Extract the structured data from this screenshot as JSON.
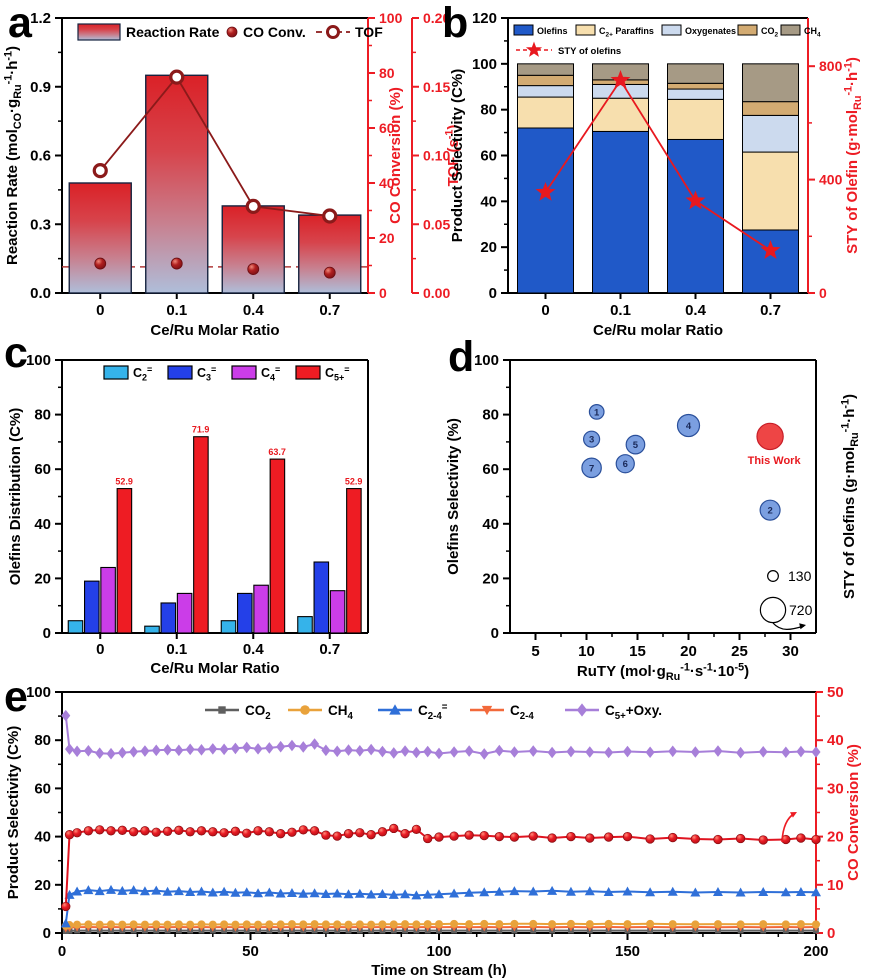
{
  "chart_data": [
    {
      "panel_label": "a",
      "type": "bar",
      "categories": [
        "0",
        "0.1",
        "0.4",
        "0.7"
      ],
      "xlabel": "Ce/Ru Molar Ratio",
      "axes": {
        "left": {
          "label": "Reaction Rate (mol~CO~·g~Ru~^-1^·h^-1^)",
          "range": [
            0,
            1.2
          ],
          "ticks": [
            0,
            0.3,
            0.6,
            0.9,
            1.2
          ],
          "tick_labels": [
            "0.0",
            "0.3",
            "0.6",
            "0.9",
            "1.2"
          ],
          "minor_step": 0.15
        },
        "right1": {
          "label": "CO Conversion (%)",
          "range": [
            0,
            100
          ],
          "ticks": [
            0,
            20,
            40,
            60,
            80,
            100
          ],
          "tick_labels": [
            "0",
            "20",
            "40",
            "60",
            "80",
            "100"
          ],
          "minor_step": 10
        },
        "right2": {
          "label": "TOF (s^-1^)",
          "range": [
            0,
            0.2
          ],
          "ticks": [
            0,
            0.05,
            0.1,
            0.15,
            0.2
          ],
          "tick_labels": [
            "0.00",
            "0.05",
            "0.10",
            "0.15",
            "0.20"
          ],
          "minor_step": 0.025
        }
      },
      "series": [
        {
          "name": "Reaction Rate",
          "type": "gradient-bar",
          "axis": "left",
          "values": [
            0.48,
            0.95,
            0.38,
            0.34
          ],
          "color_top": "#da2127",
          "color_bottom": "#afbeda",
          "border": "#16233f"
        },
        {
          "name": "CO Conv.",
          "type": "sphere-scatter",
          "axis": "right1",
          "values": [
            10.7,
            10.7,
            8.7,
            7.4
          ],
          "color": "#9e1c1c"
        },
        {
          "name": "TOF",
          "type": "open-circle-line",
          "axis": "right2",
          "values": [
            0.089,
            0.157,
            0.063,
            0.056
          ],
          "color": "#8b1a1a"
        }
      ],
      "reference_line": {
        "axis": "right1",
        "value": 9.5,
        "style": "dashed",
        "color": "#b03a3a"
      },
      "axis_red": "#ed1c24"
    },
    {
      "panel_label": "b",
      "type": "stacked-bar",
      "categories": [
        "0",
        "0.1",
        "0.4",
        "0.7"
      ],
      "xlabel": "Ce/Ru molar Ratio",
      "axes": {
        "left": {
          "label": "Product Selectivity (C%)",
          "range": [
            0,
            120
          ],
          "ticks": [
            0,
            20,
            40,
            60,
            80,
            100,
            120
          ],
          "tick_labels": [
            "0",
            "20",
            "40",
            "60",
            "80",
            "100",
            "120"
          ],
          "minor_step": 10
        },
        "right": {
          "label": "STY of Olefin (g·mol~Ru~^-1^·h^-1^)",
          "range": [
            0,
            970
          ],
          "ticks": [
            0,
            400,
            800
          ],
          "tick_labels": [
            "0",
            "400",
            "800"
          ],
          "minor_ticks": [
            200,
            600
          ]
        }
      },
      "stack_series": [
        {
          "name": "Olefins",
          "color": "#2059c8",
          "values": [
            72,
            70.5,
            67,
            27.5
          ]
        },
        {
          "name": "C~2+~ Paraffins",
          "color": "#f7dfae",
          "values": [
            13.5,
            14.5,
            17.5,
            34
          ]
        },
        {
          "name": "Oxygenates",
          "color": "#ccdaee",
          "values": [
            5,
            6,
            4.5,
            16
          ]
        },
        {
          "name": "CO~2~",
          "color": "#d3ab72",
          "values": [
            4.5,
            2,
            2.5,
            6
          ]
        },
        {
          "name": "CH~4~",
          "color": "#a69a85",
          "values": [
            5,
            7,
            8.5,
            16.5
          ]
        }
      ],
      "sty_series": {
        "name": "STY of olefins",
        "axis": "right",
        "marker": "star",
        "color": "#e8191f",
        "values": [
          355,
          750,
          325,
          150
        ]
      },
      "axis_red": "#ed1c24"
    },
    {
      "panel_label": "c",
      "type": "grouped-bar",
      "categories": [
        "0",
        "0.1",
        "0.4",
        "0.7"
      ],
      "xlabel": "Ce/Ru Molar Ratio",
      "axes": {
        "left": {
          "label": "Olefins Distribution (C%)",
          "range": [
            0,
            100
          ],
          "ticks": [
            0,
            20,
            40,
            60,
            80,
            100
          ],
          "tick_labels": [
            "0",
            "20",
            "40",
            "60",
            "80",
            "100"
          ],
          "minor_step": 10
        }
      },
      "group_series": [
        {
          "name": "C~2~^=^",
          "color": "#35b3ea",
          "values": [
            4.5,
            2.5,
            4.5,
            6
          ]
        },
        {
          "name": "C~3~^=^",
          "color": "#2440e8",
          "values": [
            19,
            11,
            14.5,
            26
          ]
        },
        {
          "name": "C~4~^=^",
          "color": "#cb3de8",
          "values": [
            24,
            14.5,
            17.5,
            15.5
          ]
        },
        {
          "name": "C~5+~^=^",
          "color": "#ee1c23",
          "values": [
            52.9,
            71.9,
            63.7,
            52.9
          ],
          "value_labels": [
            "52.9",
            "71.9",
            "63.7",
            "52.9"
          ]
        }
      ],
      "value_label_color": "#e8191f"
    },
    {
      "panel_label": "d",
      "type": "bubble-scatter",
      "xlabel": "RuTY (mol·g~Ru~^-1^·s^-1^·10^-5^)",
      "axes": {
        "x": {
          "range": [
            2.5,
            32.5
          ],
          "ticks": [
            5,
            10,
            15,
            20,
            25,
            30
          ],
          "tick_labels": [
            "5",
            "10",
            "15",
            "20",
            "25",
            "30"
          ],
          "minor_step": 2.5
        },
        "left": {
          "label": "Olefins Selectivity (%)",
          "range": [
            0,
            100
          ],
          "ticks": [
            0,
            20,
            40,
            60,
            80,
            100
          ],
          "tick_labels": [
            "0",
            "20",
            "40",
            "60",
            "80",
            "100"
          ],
          "minor_step": 10
        },
        "right": {
          "label": "STY of Olefins (g·mol~Ru~^-1^·h^-1^)"
        }
      },
      "points": [
        {
          "label": "1",
          "x": 11,
          "y": 81,
          "sty": 240
        },
        {
          "label": "2",
          "x": 28,
          "y": 45,
          "sty": 450
        },
        {
          "label": "3",
          "x": 10.5,
          "y": 71,
          "sty": 290
        },
        {
          "label": "4",
          "x": 20,
          "y": 76,
          "sty": 550
        },
        {
          "label": "5",
          "x": 14.8,
          "y": 69,
          "sty": 390
        },
        {
          "label": "6",
          "x": 13.8,
          "y": 62,
          "sty": 370
        },
        {
          "label": "7",
          "x": 10.5,
          "y": 60.5,
          "sty": 425
        }
      ],
      "this_work": {
        "label": "This Work",
        "x": 28,
        "y": 72,
        "sty": 720,
        "color": "#ee4545",
        "edge": "#c81e28"
      },
      "bubble_color": "#7b9fe0",
      "bubble_edge": "#2a4f9a",
      "number_color": "#1a2a5a",
      "size_legend": [
        {
          "label": "130",
          "sty": 130
        },
        {
          "label": "720",
          "sty": 720
        }
      ]
    },
    {
      "panel_label": "e",
      "type": "line",
      "xlabel": "Time on Stream (h)",
      "axes": {
        "x": {
          "range": [
            0,
            200
          ],
          "ticks": [
            0,
            50,
            100,
            150,
            200
          ],
          "tick_labels": [
            "0",
            "50",
            "100",
            "150",
            "200"
          ],
          "minor_step": 10
        },
        "left": {
          "label": "Product Selectivity (C%)",
          "range": [
            0,
            100
          ],
          "ticks": [
            0,
            20,
            40,
            60,
            80,
            100
          ],
          "tick_labels": [
            "0",
            "20",
            "40",
            "60",
            "80",
            "100"
          ],
          "minor_step": 10
        },
        "right": {
          "label": "CO Conversion (%)",
          "range": [
            0,
            50
          ],
          "ticks": [
            0,
            10,
            20,
            30,
            40,
            50
          ],
          "tick_labels": [
            "0",
            "10",
            "20",
            "30",
            "40",
            "50"
          ],
          "minor_step": 5
        }
      },
      "x": [
        1,
        2,
        4,
        7,
        10,
        13,
        16,
        19,
        22,
        25,
        28,
        31,
        34,
        37,
        40,
        43,
        46,
        49,
        52,
        55,
        58,
        61,
        64,
        67,
        70,
        73,
        76,
        79,
        82,
        85,
        88,
        91,
        94,
        97,
        100,
        104,
        108,
        112,
        116,
        120,
        125,
        130,
        135,
        140,
        145,
        150,
        156,
        162,
        168,
        174,
        180,
        186,
        192,
        196,
        200
      ],
      "series": [
        {
          "name": "CO~2~",
          "marker": "square",
          "color": "#5f5f5f",
          "values": [
            0.8,
            0.9,
            1.0,
            1.0,
            1.0,
            1.0,
            1.0,
            1.0,
            1.0,
            1.0,
            1.0,
            1.0,
            1.0,
            1.0,
            1.0,
            1.0,
            1.0,
            1.0,
            1.0,
            1.0,
            1.0,
            1.0,
            1.0,
            1.0,
            1.0,
            1.0,
            1.0,
            1.0,
            1.0,
            1.0,
            1.0,
            1.0,
            1.0,
            1.0,
            1.0,
            1.0,
            1.0,
            1.0,
            1.0,
            1.0,
            1.0,
            1.0,
            1.0,
            1.0,
            1.0,
            1.0,
            1.0,
            1.0,
            1.0,
            1.0,
            1.0,
            1.0,
            1.0,
            1.0,
            1.0
          ]
        },
        {
          "name": "CH~4~",
          "marker": "circle",
          "color": "#e9a23b",
          "values": [
            3.0,
            3.3,
            3.5,
            3.6,
            3.5,
            3.6,
            3.5,
            3.6,
            3.5,
            3.6,
            3.5,
            3.6,
            3.5,
            3.6,
            3.5,
            3.6,
            3.5,
            3.6,
            3.5,
            3.6,
            3.6,
            3.7,
            3.6,
            3.7,
            3.6,
            3.6,
            3.5,
            3.6,
            3.5,
            3.6,
            3.6,
            3.7,
            3.6,
            3.7,
            3.7,
            3.8,
            3.7,
            3.8,
            3.7,
            3.8,
            3.8,
            3.7,
            3.8,
            3.7,
            3.8,
            3.7,
            3.8,
            3.7,
            3.6,
            3.7,
            3.6,
            3.7,
            3.6,
            3.7,
            3.6
          ]
        },
        {
          "name": "C~2-4~^=^",
          "marker": "triangle",
          "color": "#2f6fd8",
          "values": [
            4.0,
            15.8,
            17.2,
            17.8,
            17.4,
            17.9,
            17.5,
            17.8,
            17.3,
            17.6,
            17.1,
            17.4,
            17.0,
            17.2,
            16.8,
            17.1,
            16.7,
            16.9,
            16.5,
            16.8,
            16.4,
            16.6,
            16.3,
            16.5,
            16.2,
            16.4,
            16.1,
            16.3,
            16.0,
            16.2,
            15.8,
            16.1,
            15.6,
            15.9,
            16.1,
            16.4,
            16.7,
            16.9,
            17.1,
            17.4,
            17.2,
            17.5,
            17.1,
            17.3,
            17.0,
            17.2,
            16.9,
            17.1,
            16.8,
            17.0,
            16.8,
            17.0,
            16.9,
            17.0,
            16.9
          ]
        },
        {
          "name": "C~2-4~",
          "marker": "triangle-down",
          "color": "#f2693a",
          "values": [
            2.0,
            2.3,
            2.4,
            2.5,
            2.4,
            2.5,
            2.4,
            2.5,
            2.4,
            2.5,
            2.4,
            2.5,
            2.4,
            2.5,
            2.4,
            2.5,
            2.4,
            2.5,
            2.4,
            2.5,
            2.4,
            2.5,
            2.4,
            2.5,
            2.4,
            2.5,
            2.4,
            2.5,
            2.4,
            2.5,
            2.4,
            2.5,
            2.4,
            2.5,
            2.4,
            2.5,
            2.4,
            2.5,
            2.4,
            2.5,
            2.5,
            2.4,
            2.5,
            2.4,
            2.5,
            2.4,
            2.5,
            2.4,
            2.5,
            2.4,
            2.5,
            2.4,
            2.5,
            2.4,
            2.5
          ]
        },
        {
          "name": "C~5+~+Oxy.",
          "marker": "diamond",
          "color": "#a77fd9",
          "values": [
            90.2,
            76.3,
            75.4,
            75.6,
            74.6,
            74.4,
            74.8,
            75.2,
            75.5,
            75.8,
            76.0,
            75.8,
            76.2,
            76.0,
            76.4,
            76.2,
            76.6,
            77.0,
            76.4,
            76.8,
            77.3,
            77.8,
            77.2,
            78.4,
            75.8,
            75.4,
            75.9,
            75.6,
            76.1,
            75.3,
            74.7,
            75.5,
            74.9,
            75.3,
            74.5,
            75.1,
            75.5,
            74.3,
            75.7,
            75.1,
            75.5,
            74.9,
            75.3,
            75.1,
            74.9,
            75.3,
            75.0,
            75.4,
            75.1,
            75.5,
            74.8,
            75.2,
            75.0,
            75.3,
            75.1
          ]
        }
      ],
      "co_series": {
        "name": "CO Conversion",
        "axis": "right",
        "marker": "sphere",
        "color": "#e01420",
        "values": [
          5.5,
          20.4,
          20.8,
          21.2,
          21.4,
          21.2,
          21.3,
          21.0,
          21.2,
          20.9,
          21.1,
          21.3,
          21.0,
          21.2,
          21.0,
          20.8,
          21.1,
          20.7,
          21.2,
          21.0,
          20.6,
          20.9,
          21.4,
          21.2,
          20.3,
          20.1,
          20.6,
          20.8,
          20.4,
          21.0,
          21.7,
          20.6,
          21.5,
          19.6,
          19.9,
          20.1,
          20.3,
          20.2,
          20.0,
          19.9,
          20.1,
          19.7,
          20.0,
          19.7,
          19.9,
          20.0,
          19.5,
          19.8,
          19.5,
          19.4,
          19.6,
          19.3,
          19.4,
          19.7,
          19.4
        ]
      },
      "axis_red": "#ed1c24"
    }
  ]
}
